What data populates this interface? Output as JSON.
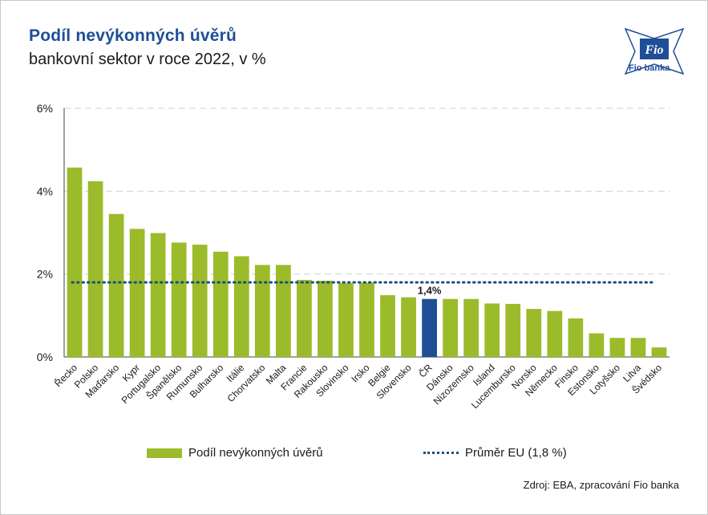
{
  "header": {
    "title": "Podíl nevýkonných úvěrů",
    "subtitle": "bankovní sektor v roce 2022, v %"
  },
  "logo": {
    "text": "Fio banka",
    "mark_text": "Fio"
  },
  "source": "Zdroj: EBA, zpracování Fio banka",
  "colors": {
    "bar": "#9bbb2a",
    "highlight": "#1f4e96",
    "avg_line": "#1f4e7c",
    "title": "#1f4e96"
  },
  "legend": {
    "bar_label": "Podíl nevýkonných úvěrů",
    "avg_label": "Průměr EU  (1,8 %)"
  },
  "chart_data": {
    "type": "bar",
    "categories": [
      "Řecko",
      "Polsko",
      "Maďarsko",
      "Kypr",
      "Portugalsko",
      "Španělsko",
      "Rumunsko",
      "Bulharsko",
      "Itálie",
      "Chorvatsko",
      "Malta",
      "Francie",
      "Rakousko",
      "Slovinsko",
      "Irsko",
      "Belgie",
      "Slovensko",
      "ČR",
      "Dánsko",
      "Nizozemsko",
      "Island",
      "Lucembursko",
      "Norsko",
      "Německo",
      "Finsko",
      "Estonsko",
      "Lotyšsko",
      "Litva",
      "Švédsko"
    ],
    "values": [
      4.57,
      4.24,
      3.45,
      3.09,
      2.99,
      2.76,
      2.71,
      2.54,
      2.43,
      2.22,
      2.22,
      1.86,
      1.84,
      1.78,
      1.79,
      1.49,
      1.44,
      1.4,
      1.4,
      1.4,
      1.29,
      1.28,
      1.16,
      1.11,
      0.93,
      0.57,
      0.46,
      0.46,
      0.23
    ],
    "highlight_category": "ČR",
    "highlight_label": "1,4%",
    "average": 1.8,
    "ylim": [
      0,
      6
    ],
    "yticks": [
      0,
      2,
      4,
      6
    ],
    "ytick_labels": [
      "0%",
      "2%",
      "4%",
      "6%"
    ],
    "grid": true
  }
}
